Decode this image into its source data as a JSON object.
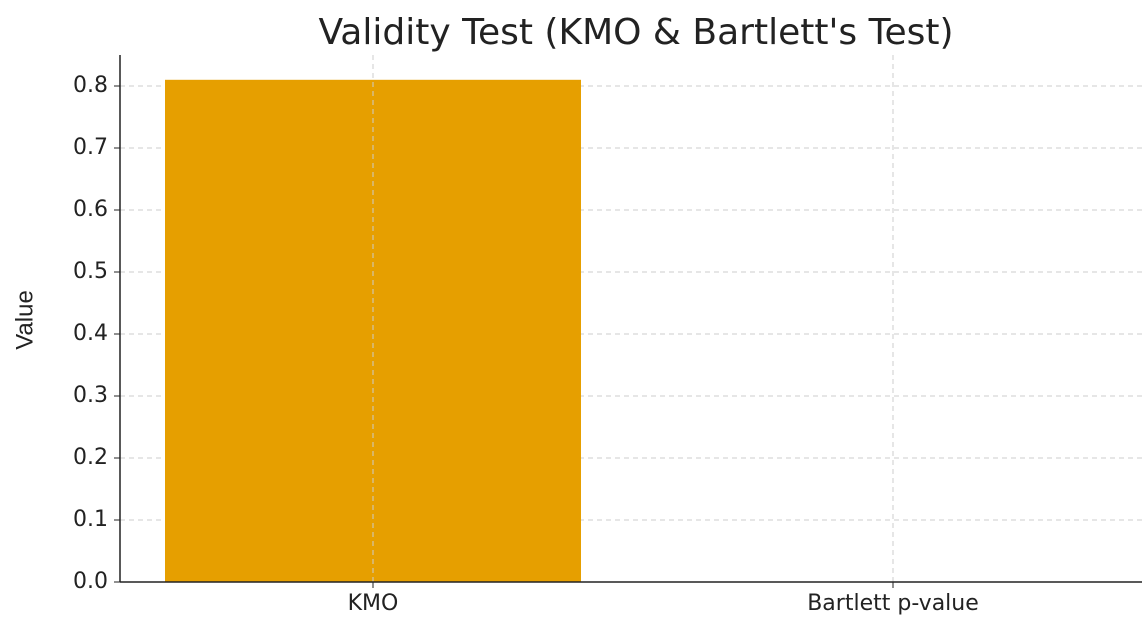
{
  "chart_data": {
    "type": "bar",
    "title": "Validity Test (KMO & Bartlett's Test)",
    "ylabel": "Value",
    "categories": [
      "KMO",
      "Bartlett p-value"
    ],
    "values": [
      0.81,
      0
    ],
    "color": "#e69f00",
    "ylim": [
      0,
      0.85
    ],
    "yticks": [
      {
        "value": 0,
        "label": "0.0"
      },
      0.1,
      0.2,
      0.3,
      0.4,
      0.5,
      0.6,
      0.7,
      0.8
    ],
    "grid": true
  }
}
